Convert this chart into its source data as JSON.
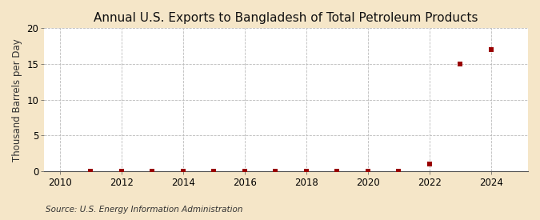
{
  "title": "Annual U.S. Exports to Bangladesh of Total Petroleum Products",
  "ylabel": "Thousand Barrels per Day",
  "source": "Source: U.S. Energy Information Administration",
  "background_color": "#f5e6c8",
  "plot_background_color": "#ffffff",
  "xlim": [
    2009.5,
    2025.2
  ],
  "ylim": [
    0,
    20
  ],
  "yticks": [
    0,
    5,
    10,
    15,
    20
  ],
  "xticks": [
    2010,
    2012,
    2014,
    2016,
    2018,
    2020,
    2022,
    2024
  ],
  "data_x": [
    2011,
    2012,
    2013,
    2014,
    2015,
    2016,
    2017,
    2018,
    2019,
    2020,
    2021,
    2022,
    2023,
    2024
  ],
  "data_y": [
    0.0,
    0.0,
    0.0,
    0.0,
    0.0,
    0.0,
    0.0,
    0.0,
    0.0,
    0.0,
    0.0,
    1.0,
    15.0,
    17.0
  ],
  "marker_color": "#990000",
  "marker_size": 18,
  "grid_color": "#bbbbbb",
  "grid_linestyle": "--",
  "title_fontsize": 11,
  "axis_fontsize": 8.5,
  "tick_fontsize": 8.5,
  "source_fontsize": 7.5
}
